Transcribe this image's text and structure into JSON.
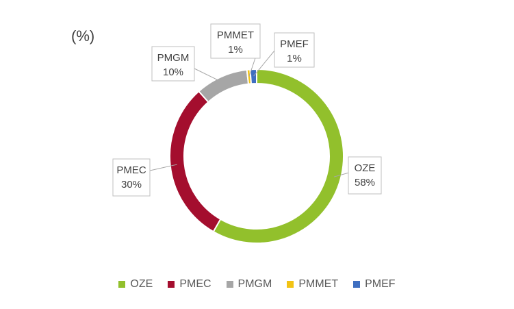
{
  "chart_data": {
    "type": "pie",
    "title": "(%)",
    "donut": true,
    "legend_position": "bottom",
    "series": [
      {
        "name": "OZE",
        "label": "OZE",
        "value_label": "58%",
        "value": 58.3,
        "color": "#92C02C"
      },
      {
        "name": "PMEC",
        "label": "PMEC",
        "value_label": "30%",
        "value": 30.1,
        "color": "#A40E2E"
      },
      {
        "name": "PMGM",
        "label": "PMGM",
        "value_label": "10%",
        "value": 9.8,
        "color": "#A6A6A6"
      },
      {
        "name": "PMMET",
        "label": "PMMET",
        "value_label": "1%",
        "value": 0.6,
        "color": "#F2C314"
      },
      {
        "name": "PMEF",
        "label": "PMEF",
        "value_label": "1%",
        "value": 1.2,
        "color": "#3F6FC1"
      }
    ]
  }
}
